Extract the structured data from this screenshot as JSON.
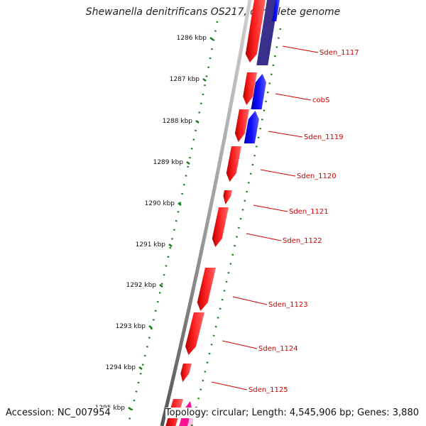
{
  "title": "Shewanella denitrificans OS217, complete genome",
  "footer": {
    "accession": "Accession: NC_007954",
    "topology": "Topology: circular; Length: 4,545,906 bp; Genes: 3,880"
  },
  "ruler": {
    "unit_suffix": " kbp",
    "ticks": [
      1286,
      1287,
      1288,
      1289,
      1290,
      1291,
      1292,
      1293,
      1294,
      1295
    ]
  },
  "gene_labels": [
    "Sden_1117",
    "cobS",
    "Sden_1119",
    "Sden_1120",
    "Sden_1121",
    "Sden_1122",
    "Sden_1123",
    "Sden_1124",
    "Sden_1125"
  ],
  "colors": {
    "forward_gene": "#ff0000",
    "reverse_gene": "#0000ff",
    "reverse_gene_dark": "#3a2f8a",
    "magenta_gene": "#ff1493",
    "backbone": "#808080",
    "tick": "#1a7a1a",
    "label": "#d00000"
  }
}
